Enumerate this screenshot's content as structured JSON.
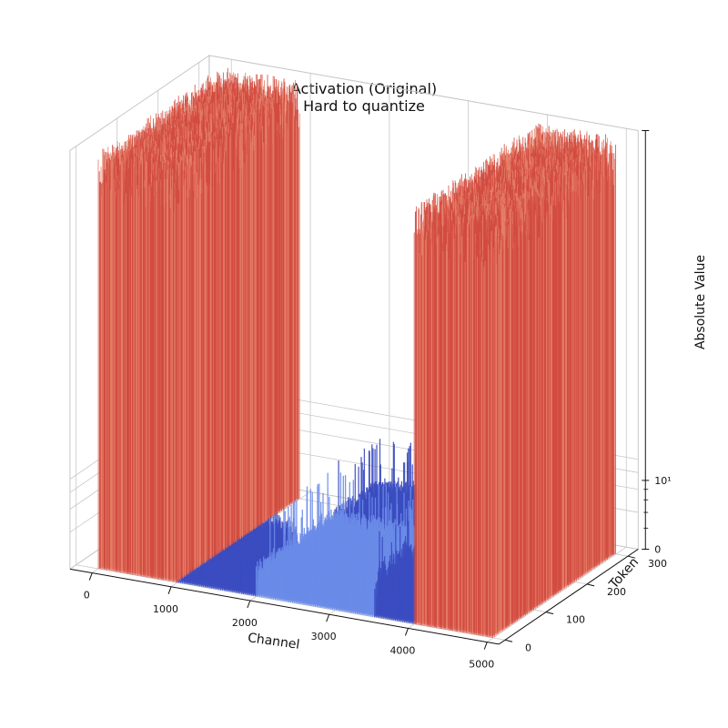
{
  "chart_data": {
    "type": "bar3d",
    "title": "Activation (Original)",
    "subtitle": "Hard to quantize",
    "xlabel": "Channel",
    "ylabel": "Token",
    "zlabel": "Absolute Value",
    "xlim": [
      0,
      5000
    ],
    "ylim": [
      0,
      300
    ],
    "x_ticks": [
      "0",
      "1000",
      "2000",
      "3000",
      "4000",
      "5000"
    ],
    "y_ticks": [
      "0",
      "100",
      "200",
      "300"
    ],
    "z_ticks": [
      "0",
      "10¹"
    ],
    "z_scale": "symlog",
    "grid": true,
    "colormap": "coolwarm",
    "colors": {
      "low_dark": "#3b4cc0",
      "low_light": "#6a8be8",
      "high": "#d24b40",
      "high_light": "#e58068"
    },
    "regions": [
      {
        "name": "outlier-channels-left",
        "channel_range": [
          0,
          1000
        ],
        "token_range": [
          0,
          300
        ],
        "level": "high"
      },
      {
        "name": "normal-channels-front-left",
        "channel_range": [
          1000,
          2000
        ],
        "token_range": [
          0,
          100
        ],
        "level": "low"
      },
      {
        "name": "normal-channels-center",
        "channel_range": [
          2000,
          3500
        ],
        "token_range": [
          0,
          300
        ],
        "level": "low"
      },
      {
        "name": "normal-channels-front-right",
        "channel_range": [
          3500,
          4000
        ],
        "token_range": [
          0,
          100
        ],
        "level": "low"
      },
      {
        "name": "outlier-channels-right",
        "channel_range": [
          4000,
          5000
        ],
        "token_range": [
          0,
          300
        ],
        "level": "high"
      }
    ]
  }
}
